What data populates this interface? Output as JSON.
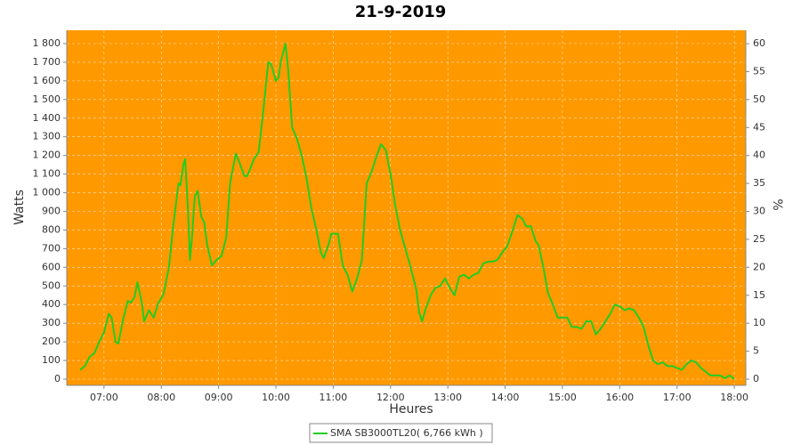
{
  "chart_data": {
    "type": "line",
    "title": "21-9-2019",
    "xlabel": "Heures",
    "ylabel": "Watts",
    "y2label": "%",
    "background": "#ff9900",
    "grid": true,
    "xlim": [
      "06:21",
      "18:12"
    ],
    "xticks": [
      "07:00",
      "08:00",
      "09:00",
      "10:00",
      "11:00",
      "12:00",
      "13:00",
      "14:00",
      "15:00",
      "16:00",
      "17:00",
      "18:00"
    ],
    "ylim": [
      -33.4,
      1871.6
    ],
    "yticks": [
      0,
      100,
      200,
      300,
      400,
      500,
      600,
      700,
      800,
      900,
      {
        "value": 1000,
        "label": "1 000"
      },
      {
        "value": 1100,
        "label": "1 100"
      },
      {
        "value": 1200,
        "label": "1 200"
      },
      {
        "value": 1300,
        "label": "1 300"
      },
      {
        "value": 1400,
        "label": "1 400"
      },
      {
        "value": 1500,
        "label": "1 500"
      },
      {
        "value": 1600,
        "label": "1 600"
      },
      {
        "value": 1700,
        "label": "1 700"
      },
      {
        "value": 1800,
        "label": "1 800"
      }
    ],
    "y2lim": [
      -1.11,
      62.39
    ],
    "y2ticks": [
      0,
      5,
      10,
      15,
      20,
      25,
      30,
      35,
      40,
      45,
      50,
      55,
      60
    ],
    "legend": "bottom",
    "series": [
      {
        "name": "SMA SB3000TL20( 6,766 kWh )",
        "color": "#22cc22",
        "x": [
          "06:35",
          "06:40",
          "06:45",
          "06:50",
          "06:55",
          "07:00",
          "07:05",
          "07:08",
          "07:12",
          "07:15",
          "07:20",
          "07:25",
          "07:28",
          "07:32",
          "07:35",
          "07:40",
          "07:42",
          "07:47",
          "07:52",
          "07:57",
          "08:02",
          "08:08",
          "08:12",
          "08:18",
          "08:20",
          "08:23",
          "08:25",
          "08:28",
          "08:30",
          "08:32",
          "08:35",
          "08:38",
          "08:42",
          "08:45",
          "08:48",
          "08:53",
          "08:58",
          "09:03",
          "09:08",
          "09:12",
          "09:18",
          "09:22",
          "09:27",
          "09:30",
          "09:37",
          "09:42",
          "09:47",
          "09:52",
          "09:55",
          "10:00",
          "10:03",
          "10:05",
          "10:10",
          "10:13",
          "10:17",
          "10:22",
          "10:27",
          "10:32",
          "10:37",
          "10:42",
          "10:47",
          "10:50",
          "10:55",
          "10:58",
          "11:02",
          "11:05",
          "11:10",
          "11:15",
          "11:20",
          "11:25",
          "11:30",
          "11:35",
          "11:40",
          "11:45",
          "11:50",
          "11:55",
          "12:00",
          "12:05",
          "12:10",
          "12:15",
          "12:20",
          "12:27",
          "12:30",
          "12:33",
          "12:37",
          "12:42",
          "12:47",
          "12:52",
          "12:57",
          "13:02",
          "13:07",
          "13:12",
          "13:17",
          "13:22",
          "13:27",
          "13:32",
          "13:37",
          "13:42",
          "13:47",
          "13:52",
          "13:57",
          "14:02",
          "14:08",
          "14:13",
          "14:18",
          "14:22",
          "14:27",
          "14:32",
          "14:35",
          "14:40",
          "14:45",
          "14:50",
          "14:55",
          "15:00",
          "15:05",
          "15:10",
          "15:15",
          "15:20",
          "15:25",
          "15:30",
          "15:35",
          "15:40",
          "15:45",
          "15:50",
          "15:55",
          "16:00",
          "16:05",
          "16:10",
          "16:15",
          "16:20",
          "16:25",
          "16:30",
          "16:35",
          "16:40",
          "16:45",
          "16:50",
          "16:55",
          "17:00",
          "17:05",
          "17:10",
          "17:15",
          "17:20",
          "17:25",
          "17:30",
          "17:35",
          "17:40",
          "17:45",
          "17:50",
          "17:55",
          "18:00"
        ],
        "values": [
          50,
          70,
          120,
          140,
          200,
          250,
          350,
          330,
          200,
          190,
          320,
          420,
          410,
          440,
          520,
          400,
          310,
          370,
          330,
          410,
          450,
          600,
          800,
          1050,
          1040,
          1150,
          1180,
          900,
          640,
          750,
          980,
          1010,
          870,
          840,
          720,
          610,
          640,
          660,
          760,
          1050,
          1210,
          1160,
          1090,
          1090,
          1180,
          1220,
          1450,
          1700,
          1690,
          1600,
          1620,
          1700,
          1800,
          1650,
          1350,
          1290,
          1200,
          1080,
          920,
          810,
          680,
          650,
          720,
          780,
          780,
          780,
          610,
          560,
          470,
          540,
          640,
          1050,
          1110,
          1190,
          1260,
          1230,
          1100,
          930,
          800,
          710,
          620,
          480,
          360,
          310,
          380,
          450,
          490,
          500,
          540,
          490,
          450,
          550,
          560,
          540,
          560,
          570,
          620,
          630,
          630,
          640,
          680,
          710,
          800,
          880,
          860,
          820,
          820,
          740,
          720,
          600,
          460,
          400,
          330,
          330,
          330,
          280,
          280,
          270,
          310,
          310,
          240,
          270,
          310,
          350,
          400,
          390,
          370,
          380,
          370,
          330,
          280,
          180,
          100,
          80,
          90,
          70,
          70,
          60,
          50,
          80,
          100,
          90,
          60,
          40,
          20,
          20,
          20,
          5,
          20,
          0
        ]
      }
    ]
  }
}
